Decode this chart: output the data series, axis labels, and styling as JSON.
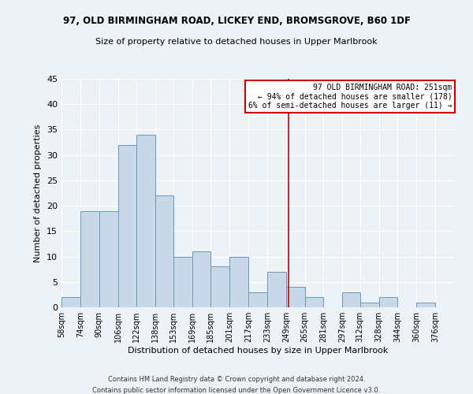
{
  "title1": "97, OLD BIRMINGHAM ROAD, LICKEY END, BROMSGROVE, B60 1DF",
  "title2": "Size of property relative to detached houses in Upper Marlbrook",
  "xlabel": "Distribution of detached houses by size in Upper Marlbrook",
  "ylabel": "Number of detached properties",
  "footer1": "Contains HM Land Registry data © Crown copyright and database right 2024.",
  "footer2": "Contains public sector information licensed under the Open Government Licence v3.0.",
  "bin_labels": [
    "58sqm",
    "74sqm",
    "90sqm",
    "106sqm",
    "122sqm",
    "138sqm",
    "153sqm",
    "169sqm",
    "185sqm",
    "201sqm",
    "217sqm",
    "233sqm",
    "249sqm",
    "265sqm",
    "281sqm",
    "297sqm",
    "312sqm",
    "328sqm",
    "344sqm",
    "360sqm",
    "376sqm"
  ],
  "bin_edges": [
    58,
    74,
    90,
    106,
    122,
    138,
    153,
    169,
    185,
    201,
    217,
    233,
    249,
    265,
    281,
    297,
    312,
    328,
    344,
    360,
    376,
    392
  ],
  "counts": [
    2,
    19,
    19,
    32,
    34,
    22,
    10,
    11,
    8,
    10,
    3,
    7,
    4,
    2,
    0,
    3,
    1,
    2,
    0,
    1,
    0
  ],
  "bar_color": "#c8d8e8",
  "bar_edge_color": "#6699bb",
  "reference_line_x": 251,
  "reference_line_color": "#cc0000",
  "annotation_line1": "97 OLD BIRMINGHAM ROAD: 251sqm",
  "annotation_line2": "← 94% of detached houses are smaller (178)",
  "annotation_line3": "6% of semi-detached houses are larger (11) →",
  "ylim": [
    0,
    45
  ],
  "yticks": [
    0,
    5,
    10,
    15,
    20,
    25,
    30,
    35,
    40,
    45
  ],
  "background_color": "#edf2f7"
}
